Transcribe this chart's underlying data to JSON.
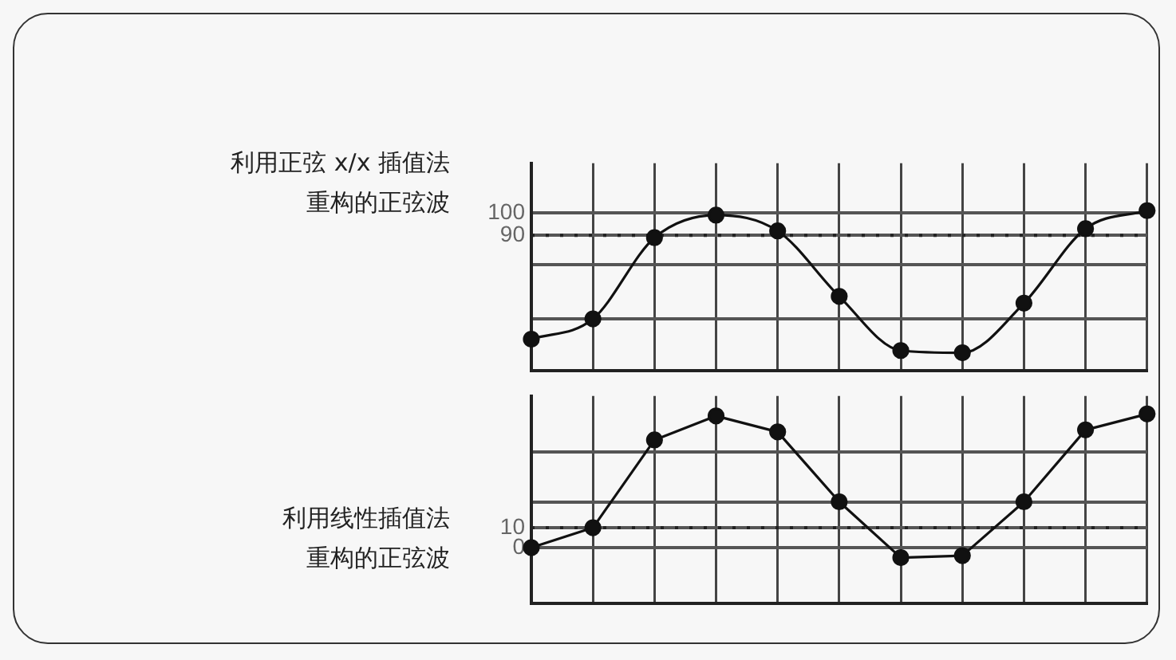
{
  "chart_data": [
    {
      "type": "line",
      "categories": [
        null,
        null,
        null,
        null,
        null,
        null,
        null,
        null,
        null,
        null,
        null
      ],
      "series": [
        {
          "name": "利用正弦 x/x 插值法重构的正弦波",
          "color": "#111111",
          "values": [
            44,
            53,
            89,
            99,
            92,
            63,
            39,
            38,
            60,
            93,
            101
          ]
        }
      ],
      "ylim": [
        30,
        122
      ],
      "yticks": [
        {
          "value": 53,
          "label": null
        },
        {
          "value": 77,
          "label": null
        },
        90,
        100
      ],
      "ref_lines": [
        {
          "axis": "y",
          "value": 90,
          "line_style": "dotted",
          "color": "#222222"
        }
      ],
      "grid": true,
      "tick_labels": "y",
      "marker": "circle",
      "legend": false
    },
    {
      "type": "line",
      "categories": [
        null,
        null,
        null,
        null,
        null,
        null,
        null,
        null,
        null,
        null,
        null
      ],
      "series": [
        {
          "name": "利用线性插值法重构的正弦波",
          "color": "#111111",
          "values": [
            0,
            10,
            54,
            66,
            58,
            23,
            -5,
            -4,
            23,
            59,
            67
          ]
        }
      ],
      "ylim": [
        -28,
        76
      ],
      "yticks": [
        0,
        10,
        {
          "value": 23,
          "label": null
        },
        {
          "value": 48,
          "label": null
        }
      ],
      "ref_lines": [
        {
          "axis": "y",
          "value": 10,
          "line_style": "dotted",
          "color": "#222222"
        }
      ],
      "grid": true,
      "tick_labels": "y",
      "marker": "circle",
      "legend": false
    }
  ]
}
